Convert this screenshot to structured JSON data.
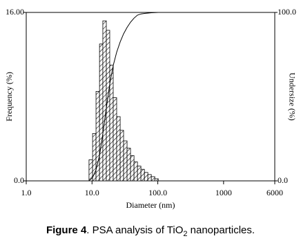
{
  "chart_data": {
    "type": "histogram",
    "xlabel": "Diameter (nm)",
    "ylabel": "Frequency (%)",
    "y2label": "Undersize (%)",
    "xscale": "log",
    "bins": [
      9,
      10.2,
      11.5,
      13,
      14.6,
      16.5,
      18.6,
      21,
      23.7,
      26.8,
      30.2,
      34.1,
      38.5,
      43.5,
      49.1,
      55.4,
      62.6,
      70.6,
      79.7,
      90,
      101.6
    ],
    "values": [
      2.0,
      4.5,
      8.5,
      13.0,
      15.2,
      14.3,
      11.0,
      7.9,
      6.1,
      4.8,
      3.8,
      3.1,
      2.4,
      1.8,
      1.4,
      1.1,
      0.8,
      0.6,
      0.4,
      0.2
    ],
    "color": "#000000",
    "xlim": [
      1,
      6000
    ],
    "xticks": [
      {
        "value": 1,
        "label": "1.0"
      },
      {
        "value": 10,
        "label": "10.0"
      },
      {
        "value": 100,
        "label": "100.0"
      },
      1000,
      6000
    ],
    "ylim": [
      0,
      16
    ],
    "yticks": [
      {
        "value": 0,
        "label": "0.0"
      },
      {
        "value": 16,
        "label": "16.00"
      }
    ],
    "y2lim": [
      0,
      100
    ],
    "y2ticks": [
      {
        "value": 0,
        "label": "0.0"
      },
      {
        "value": 100,
        "label": "100.0"
      }
    ],
    "series": [
      {
        "type": "line",
        "axis": "y2",
        "color": "#000000",
        "x": [
          9,
          10.2,
          11.5,
          13,
          14.6,
          16.5,
          18.6,
          21,
          23.7,
          26.8,
          30.2,
          34.1,
          38.5,
          43.5,
          49.1,
          55.4,
          62.6,
          70.6,
          79.7,
          90,
          101.6
        ],
        "values": [
          0,
          2,
          6.5,
          15,
          28,
          43.2,
          57.5,
          68.5,
          76.4,
          82.5,
          87.3,
          91.1,
          94.2,
          96.6,
          98.4,
          99.1,
          99.4,
          99.6,
          99.8,
          99.9,
          100
        ]
      }
    ],
    "caption": {
      "label": "Figure 4",
      "text": ". PSA analysis of TiO",
      "subscript": "2",
      "tail": " nanoparticles."
    }
  }
}
